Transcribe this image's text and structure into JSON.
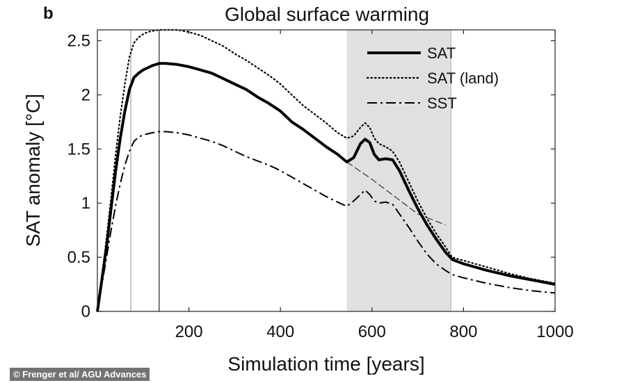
{
  "panel_label": "b",
  "credit": "© Frenger et al/ AGU Advances",
  "chart_data": {
    "type": "line",
    "title": "Global surface warming",
    "xlabel": "Simulation time [years]",
    "ylabel": "SAT anomaly [°C]",
    "xlim": [
      0,
      1000
    ],
    "ylim": [
      0,
      2.6
    ],
    "xticks": [
      200,
      400,
      600,
      800,
      1000
    ],
    "yticks": [
      0,
      0.5,
      1,
      1.5,
      2,
      2.5
    ],
    "ytick_labels": [
      "0",
      "0.5",
      "1",
      "1.5",
      "2",
      "2.5"
    ],
    "legend_position": "top-right",
    "shaded_period": [
      545,
      770
    ],
    "vertical_lines": [
      {
        "x": 73,
        "style": "thin-gray"
      },
      {
        "x": 135,
        "style": "thin-black"
      },
      {
        "x": 772,
        "style": "thin-gray"
      }
    ],
    "series": [
      {
        "name": "SAT",
        "style": "solid-thick",
        "x": [
          0,
          10,
          20,
          30,
          40,
          50,
          60,
          70,
          80,
          90,
          100,
          110,
          120,
          135,
          150,
          175,
          200,
          225,
          250,
          275,
          300,
          325,
          350,
          375,
          400,
          425,
          450,
          475,
          500,
          525,
          545,
          560,
          575,
          585,
          595,
          605,
          615,
          630,
          645,
          660,
          680,
          700,
          720,
          740,
          760,
          775,
          800,
          850,
          900,
          950,
          1000
        ],
        "y": [
          0,
          0.3,
          0.6,
          0.95,
          1.3,
          1.6,
          1.85,
          2.05,
          2.16,
          2.2,
          2.23,
          2.25,
          2.27,
          2.29,
          2.29,
          2.28,
          2.26,
          2.23,
          2.2,
          2.15,
          2.1,
          2.05,
          1.98,
          1.92,
          1.85,
          1.75,
          1.68,
          1.6,
          1.52,
          1.45,
          1.38,
          1.42,
          1.55,
          1.59,
          1.56,
          1.45,
          1.4,
          1.41,
          1.4,
          1.3,
          1.12,
          0.95,
          0.8,
          0.67,
          0.55,
          0.48,
          0.44,
          0.38,
          0.33,
          0.29,
          0.25
        ]
      },
      {
        "name": "SAT (land)",
        "style": "dotted",
        "x": [
          0,
          10,
          20,
          30,
          40,
          50,
          60,
          70,
          80,
          90,
          100,
          110,
          120,
          135,
          150,
          175,
          200,
          225,
          250,
          275,
          300,
          325,
          350,
          375,
          400,
          425,
          450,
          475,
          500,
          525,
          545,
          560,
          575,
          585,
          595,
          605,
          615,
          630,
          645,
          660,
          680,
          700,
          720,
          740,
          760,
          775,
          800,
          850,
          900,
          950,
          1000
        ],
        "y": [
          0,
          0.32,
          0.68,
          1.05,
          1.45,
          1.8,
          2.1,
          2.35,
          2.48,
          2.53,
          2.56,
          2.58,
          2.59,
          2.6,
          2.6,
          2.6,
          2.58,
          2.55,
          2.5,
          2.45,
          2.38,
          2.32,
          2.25,
          2.18,
          2.1,
          2.0,
          1.9,
          1.82,
          1.74,
          1.65,
          1.6,
          1.62,
          1.7,
          1.74,
          1.7,
          1.6,
          1.55,
          1.52,
          1.48,
          1.38,
          1.2,
          1.02,
          0.86,
          0.72,
          0.6,
          0.5,
          0.47,
          0.41,
          0.35,
          0.3,
          0.26
        ]
      },
      {
        "name": "SST",
        "style": "dash-dot",
        "x": [
          0,
          10,
          20,
          30,
          40,
          50,
          60,
          70,
          80,
          90,
          100,
          110,
          120,
          135,
          150,
          175,
          200,
          225,
          250,
          275,
          300,
          325,
          350,
          375,
          400,
          425,
          450,
          475,
          500,
          525,
          545,
          560,
          575,
          585,
          595,
          605,
          615,
          630,
          645,
          660,
          680,
          700,
          720,
          740,
          760,
          775,
          800,
          850,
          900,
          950,
          1000
        ],
        "y": [
          0,
          0.25,
          0.5,
          0.75,
          0.98,
          1.18,
          1.35,
          1.48,
          1.57,
          1.61,
          1.63,
          1.64,
          1.65,
          1.66,
          1.66,
          1.65,
          1.63,
          1.6,
          1.57,
          1.53,
          1.48,
          1.43,
          1.39,
          1.35,
          1.3,
          1.24,
          1.18,
          1.12,
          1.06,
          1.01,
          0.97,
          1.02,
          1.08,
          1.12,
          1.08,
          1.02,
          1.0,
          1.01,
          0.99,
          0.9,
          0.78,
          0.65,
          0.53,
          0.44,
          0.38,
          0.34,
          0.31,
          0.26,
          0.22,
          0.19,
          0.17
        ]
      },
      {
        "name": "",
        "style": "thin-dashed",
        "x": [
          545,
          600,
          650,
          700,
          760
        ],
        "y": [
          1.38,
          1.22,
          1.06,
          0.9,
          0.8
        ]
      }
    ]
  }
}
